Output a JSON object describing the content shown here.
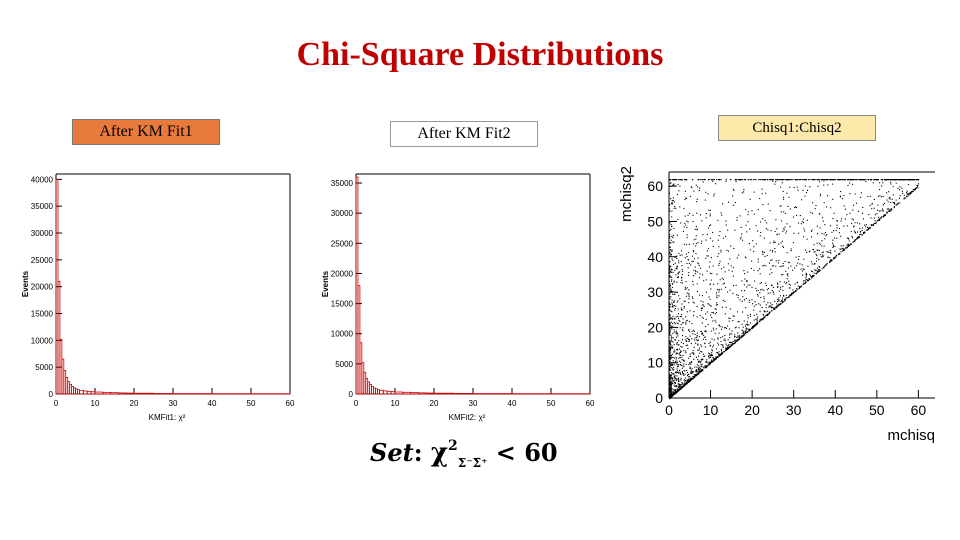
{
  "title": "Chi-Square Distributions",
  "labels": {
    "fit1": "After KM Fit1",
    "fit2": "After KM Fit2",
    "scatter": "Chisq1:Chisq2"
  },
  "set_label": {
    "prefix": "Set",
    "colon": ":",
    "chi": "χ",
    "sup": "2",
    "sub": "Σ⁻Σ̄⁺",
    "rel": "< 60"
  },
  "colors": {
    "title": "#c00000",
    "hist_line": "#cc0000",
    "box1": "#e87a3c",
    "box3": "#fde9a9"
  },
  "chart_data": [
    {
      "type": "bar",
      "xlabel": "KMFit1: χ²",
      "ylabel": "Events",
      "xlim": [
        0,
        60
      ],
      "ylim": [
        0,
        41000
      ],
      "xticks": [
        0,
        10,
        20,
        30,
        40,
        50,
        60
      ],
      "yticks": [
        0,
        5000,
        10000,
        15000,
        20000,
        25000,
        30000,
        35000,
        40000
      ],
      "bin_width": 0.5,
      "x": [
        0,
        0.5,
        1,
        1.5,
        2,
        2.5,
        3,
        3.5,
        4,
        4.5,
        5,
        5.5,
        6,
        7,
        8,
        9,
        10,
        12,
        14,
        16,
        18,
        20,
        25,
        30,
        40,
        50
      ],
      "values": [
        40000,
        21000,
        10200,
        6500,
        4400,
        3100,
        2300,
        1800,
        1400,
        1150,
        950,
        800,
        680,
        560,
        480,
        410,
        360,
        300,
        250,
        200,
        170,
        140,
        100,
        80,
        60,
        50
      ]
    },
    {
      "type": "bar",
      "xlabel": "KMFit2: χ²",
      "ylabel": "Events",
      "xlim": [
        0,
        60
      ],
      "ylim": [
        0,
        36500
      ],
      "xticks": [
        0,
        10,
        20,
        30,
        40,
        50,
        60
      ],
      "yticks": [
        0,
        5000,
        10000,
        15000,
        20000,
        25000,
        30000,
        35000
      ],
      "bin_width": 0.5,
      "x": [
        0,
        0.5,
        1,
        1.5,
        2,
        2.5,
        3,
        3.5,
        4,
        4.5,
        5,
        5.5,
        6,
        7,
        8,
        9,
        10,
        12,
        14,
        16,
        18,
        20,
        25,
        30,
        40,
        50
      ],
      "values": [
        36000,
        18000,
        8500,
        5200,
        3600,
        2600,
        2000,
        1600,
        1250,
        1000,
        850,
        720,
        620,
        520,
        440,
        380,
        330,
        280,
        230,
        190,
        160,
        130,
        95,
        75,
        55,
        45
      ]
    },
    {
      "type": "scatter",
      "xlabel": "mchisq",
      "ylabel": "mchisq2",
      "xlim": [
        0,
        64
      ],
      "ylim": [
        0,
        64
      ],
      "xticks": [
        0,
        10,
        20,
        30,
        40,
        50,
        60
      ],
      "yticks": [
        0,
        10,
        20,
        30,
        40,
        50,
        60
      ],
      "relation": "points satisfy mchisq2 >= mchisq (above diagonal), densest near origin"
    }
  ]
}
